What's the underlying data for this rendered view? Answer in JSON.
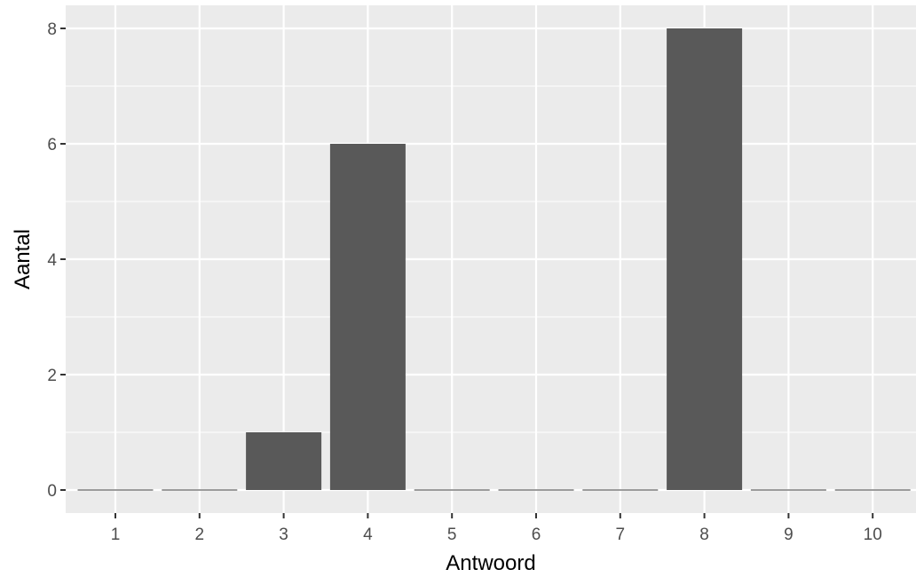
{
  "chart_data": {
    "type": "bar",
    "categories": [
      "1",
      "2",
      "3",
      "4",
      "5",
      "6",
      "7",
      "8",
      "9",
      "10"
    ],
    "values": [
      0,
      0,
      1,
      6,
      0,
      0,
      0,
      8,
      0,
      0
    ],
    "xlabel": "Antwoord",
    "ylabel": "Aantal",
    "ylim": [
      0,
      8
    ],
    "yticks": [
      0,
      2,
      4,
      6,
      8
    ],
    "grid": true,
    "legend": "none"
  },
  "colors": {
    "panel_background": "#ebebeb",
    "grid_major": "#ffffff",
    "bar_fill": "#595959",
    "tick_mark": "#333333"
  }
}
